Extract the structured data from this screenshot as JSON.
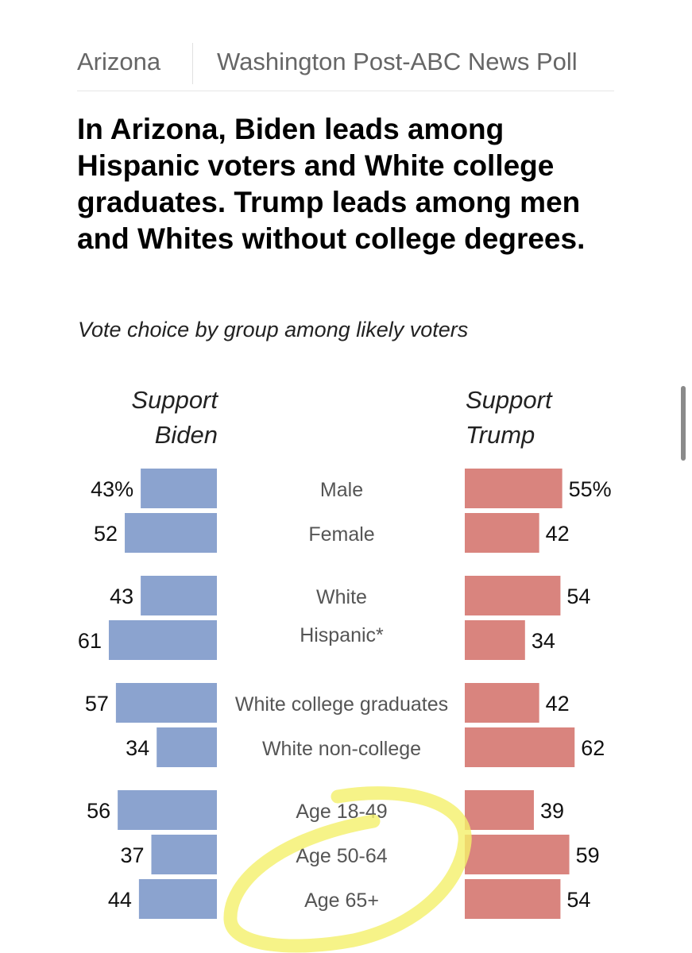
{
  "tabs": {
    "state": "Arizona",
    "source": "Washington Post-ABC News Poll"
  },
  "headline": "In Arizona, Biden leads among Hispanic voters and White college graduates. Trump leads among men and Whites without college degrees.",
  "subtitle": "Vote choice by group among likely voters",
  "colors": {
    "biden": "#8ba3cf",
    "trump": "#d9847e",
    "highlight": "#f4f06a"
  },
  "chart_data": {
    "type": "bar",
    "title": "In Arizona, Biden leads among Hispanic voters and White college graduates. Trump leads among men and Whites without college degrees.",
    "subtitle": "Vote choice by group among likely voters",
    "unit": "%",
    "categories": [
      "Male",
      "Female",
      "White",
      "Hispanic*",
      "White college graduates",
      "White non-college",
      "Age 18-49",
      "Age 50-64",
      "Age 65+"
    ],
    "groups": [
      [
        "Male",
        "Female"
      ],
      [
        "White",
        "Hispanic*"
      ],
      [
        "White college graduates",
        "White non-college"
      ],
      [
        "Age 18-49",
        "Age 50-64",
        "Age 65+"
      ]
    ],
    "series": [
      {
        "name": "Support Biden",
        "values": [
          43,
          52,
          43,
          61,
          57,
          34,
          56,
          37,
          44
        ]
      },
      {
        "name": "Support Trump",
        "values": [
          55,
          42,
          54,
          34,
          42,
          62,
          39,
          59,
          54
        ]
      }
    ],
    "value_labels": {
      "biden": [
        "43%",
        "52",
        "43",
        "61",
        "57",
        "34",
        "56",
        "37",
        "44"
      ],
      "trump": [
        "55%",
        "42",
        "54",
        "34",
        "42",
        "62",
        "39",
        "59",
        "54"
      ]
    },
    "layout": "diverging back-to-back bars",
    "grid": false,
    "annotation": "hand-drawn yellow circle around Age 18-49, Age 50-64, Age 65+"
  }
}
